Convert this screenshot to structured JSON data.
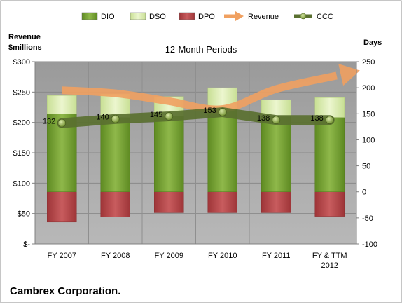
{
  "chart_data": {
    "type": "bar",
    "title": "12-Month Periods",
    "categories": [
      "FY 2007",
      "FY 2008",
      "FY 2009",
      "FY 2010",
      "FY 2011",
      "FY & TTM|2012"
    ],
    "left_axis": {
      "label_line1": "Revenue",
      "label_line2": "$millions",
      "ticks": [
        "$-",
        "$50",
        "$100",
        "$150",
        "$200",
        "$250",
        "$300"
      ],
      "range": [
        0,
        300
      ]
    },
    "right_axis": {
      "label": "Days",
      "ticks": [
        "-100",
        "-50",
        "0",
        "50",
        "100",
        "150",
        "200",
        "250"
      ],
      "range": [
        -100,
        250
      ]
    },
    "legend": {
      "placement": "top",
      "items": [
        {
          "key": "DIO",
          "label": "DIO"
        },
        {
          "key": "DSO",
          "label": "DSO"
        },
        {
          "key": "DPO",
          "label": "DPO"
        },
        {
          "key": "Revenue",
          "label": "Revenue"
        },
        {
          "key": "CCC",
          "label": "CCC"
        }
      ]
    },
    "series": [
      {
        "name": "DIO",
        "axis": "right",
        "values": [
          150,
          143,
          146,
          160,
          145,
          143
        ]
      },
      {
        "name": "DSO",
        "axis": "right",
        "values": [
          35,
          45,
          37,
          40,
          32,
          38
        ]
      },
      {
        "name": "DPO",
        "axis": "right",
        "values": [
          -58,
          -48,
          -40,
          -40,
          -40,
          -47
        ]
      },
      {
        "name": "Revenue",
        "axis": "left",
        "values": [
          253,
          248,
          235,
          222,
          255,
          277
        ]
      },
      {
        "name": "CCC",
        "axis": "right",
        "values": [
          132,
          140,
          145,
          153,
          138,
          138
        ],
        "labels": [
          "132",
          "140",
          "145",
          "153",
          "138",
          "138"
        ]
      }
    ],
    "colors": {
      "DIO": "#7aa233",
      "DSO": "#d9ebae",
      "DPO": "#b8474a",
      "Revenue": "#f0a060",
      "CCC": "#5a7030",
      "plot_background": "#a5a5a5"
    },
    "grid": true
  },
  "footer": {
    "company": "Cambrex Corporation."
  }
}
